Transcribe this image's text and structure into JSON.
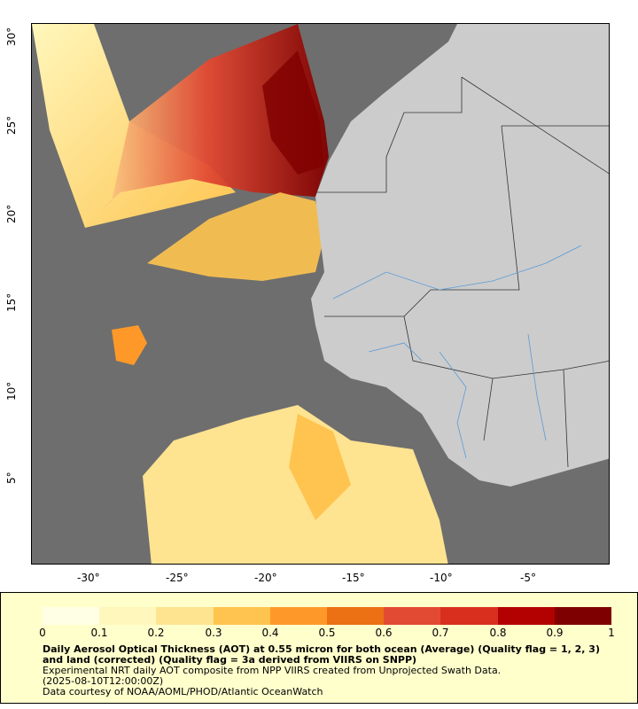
{
  "map": {
    "lon_labels": [
      "-30°",
      "-25°",
      "-20°",
      "-15°",
      "-10°",
      "-5°"
    ],
    "lat_labels": [
      "30°",
      "25°",
      "20°",
      "15°",
      "10°",
      "5°"
    ],
    "colors": {
      "ocean_nodata": "#6e6e6e",
      "land": "#cccccc",
      "river": "#5b9bd5",
      "border": "#333333"
    }
  },
  "colorbar": {
    "ticks": [
      "0",
      "0.1",
      "0.2",
      "0.3",
      "0.4",
      "0.5",
      "0.6",
      "0.7",
      "0.8",
      "0.9",
      "1"
    ],
    "colors": [
      "#ffffe5",
      "#fff7bc",
      "#fee391",
      "#fec44f",
      "#fe9929",
      "#ec7014",
      "#e34a33",
      "#d7301f",
      "#b30000",
      "#7f0000"
    ]
  },
  "caption": {
    "title": "Daily Aerosol Optical Thickness (AOT) at 0.55 micron for both ocean (Average) (Quality flag = 1, 2, 3) and land (corrected) (Quality flag = 3a derived from VIIRS on SNPP)",
    "line2": "Experimental NRT daily AOT composite from NPP VIIRS created from Unprojected Swath Data.",
    "line3": "(2025-08-10T12:00:00Z)",
    "line4": "Data courtesy of NOAA/AOML/PHOD/Atlantic OceanWatch"
  }
}
